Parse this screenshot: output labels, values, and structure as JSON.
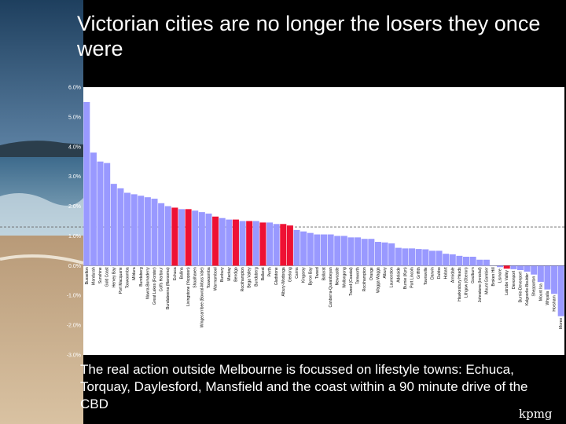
{
  "slide": {
    "title": "Victorian cities are no longer the losers they once were",
    "footer": "The real action outside Melbourne is focussed on lifestyle towns: Echuca, Torquay, Daylesford, Mansfield and the coast within a 90 minute drive of the CBD",
    "logo": "kpmg"
  },
  "colors": {
    "other": "#9999ff",
    "victoria": "#ee1133",
    "plot_bg": "#ffffff",
    "reference_line": "#666666"
  },
  "chart_data": {
    "type": "bar",
    "title": "",
    "xlabel": "",
    "ylabel": "",
    "ylim": [
      -3.0,
      6.0
    ],
    "y_ticks": [
      "6.0%",
      "5.0%",
      "4.0%",
      "3.0%",
      "2.0%",
      "1.0%",
      "0.0%",
      "-1.0%",
      "-2.0%",
      "-3.0%"
    ],
    "reference_line_value": 1.3,
    "grid": false,
    "legend": "none",
    "categories": [
      "Busselton",
      "Mandurah",
      "Sunshine",
      "Gold Coast",
      "Hervey Bay",
      "Port Macquarie",
      "Toowoomba",
      "Mildura",
      "Bundaberg",
      "Nowra-Bomaderry",
      "Great Lakes (Forster)",
      "Coffs Harbour",
      "Bundabeena (Narooma)",
      "Echuca",
      "Ballina",
      "Livingstone (Yeppoon)",
      "Shoalhaven",
      "Wingecarribee (Bowral-Moss Vale)",
      "Toowoomba",
      "Warrnambool",
      "Bunbury",
      "Mackay",
      "Bendigo",
      "Rockhampton",
      "Bega Valley",
      "Bundaberg",
      "Ballarat",
      "Perth",
      "Gladstone",
      "Albury-Wodonga",
      "Geelong",
      "Cairns",
      "Kingaroy",
      "Byron Bay",
      "Tweed",
      "Ballarat",
      "Canberra-Queanbeyan",
      "Newcastle",
      "Wollongong",
      "Tweed (Coastal)",
      "Tamworth",
      "Rockhampton",
      "Orange",
      "Wagga Wagga",
      "Albury",
      "Launceston",
      "Adelaide",
      "Burnie (Kyn)",
      "Port Lincoln",
      "Griffith",
      "Townsville",
      "Darwin",
      "Dubbo",
      "Hobart",
      "Armidale",
      "Hawkesbury Heads",
      "Lithgow (Oberon)",
      "Goulburn",
      "Johnstone (Innisfail)",
      "Mount Gambier",
      "Broken Hill",
      "Lismore",
      "Latrobe Valley",
      "Devonport",
      "Burnie-Devonport",
      "Kalgoorlie-Boulder",
      "Shepparton",
      "Mount Isa",
      "Whyalla",
      "Horsham",
      "Moree"
    ],
    "values": [
      5.5,
      3.8,
      3.5,
      3.45,
      2.75,
      2.6,
      2.45,
      2.4,
      2.35,
      2.3,
      2.25,
      2.1,
      2.0,
      1.95,
      1.9,
      1.9,
      1.85,
      1.8,
      1.75,
      1.65,
      1.6,
      1.55,
      1.55,
      1.5,
      1.5,
      1.5,
      1.45,
      1.45,
      1.4,
      1.4,
      1.35,
      1.2,
      1.15,
      1.1,
      1.05,
      1.05,
      1.05,
      1.0,
      1.0,
      0.95,
      0.95,
      0.9,
      0.9,
      0.8,
      0.78,
      0.75,
      0.6,
      0.58,
      0.58,
      0.56,
      0.55,
      0.5,
      0.5,
      0.4,
      0.38,
      0.33,
      0.3,
      0.3,
      0.2,
      0.2,
      0.0,
      -0.05,
      -0.1,
      -0.12,
      -0.15,
      -0.2,
      -0.3,
      -0.55,
      -0.8,
      -0.95,
      -1.7
    ],
    "highlight_victoria": [
      false,
      false,
      false,
      false,
      false,
      false,
      false,
      false,
      false,
      false,
      false,
      false,
      false,
      true,
      false,
      true,
      false,
      false,
      false,
      true,
      false,
      false,
      true,
      false,
      true,
      false,
      true,
      false,
      false,
      true,
      true,
      false,
      false,
      false,
      false,
      false,
      false,
      false,
      false,
      false,
      false,
      false,
      false,
      false,
      false,
      false,
      false,
      false,
      false,
      false,
      false,
      false,
      false,
      false,
      false,
      false,
      false,
      false,
      false,
      false,
      false,
      false,
      true,
      false,
      false,
      false,
      false,
      false,
      false,
      false,
      false
    ]
  }
}
